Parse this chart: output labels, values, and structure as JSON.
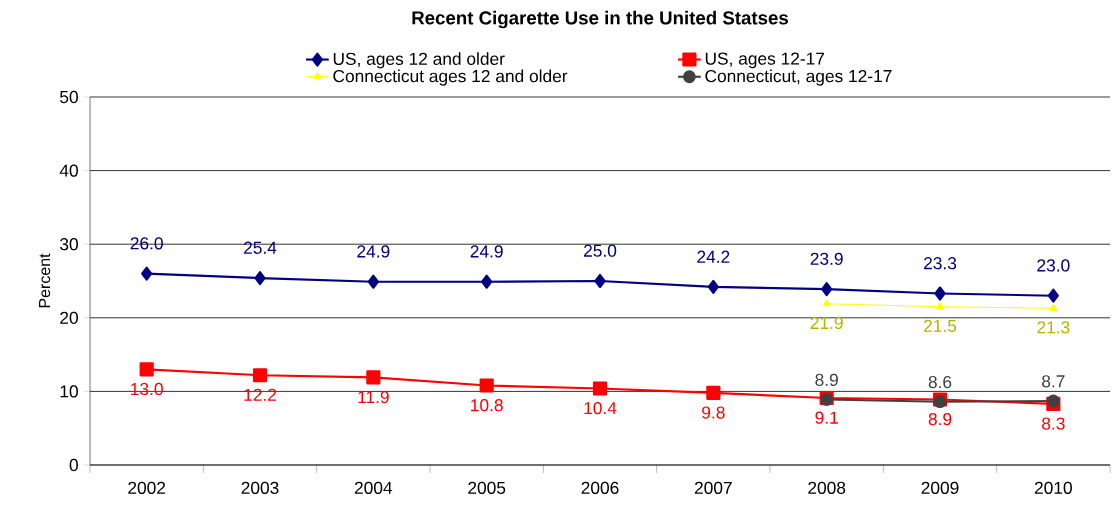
{
  "chart_data": {
    "type": "line",
    "title": "Recent Cigarette Use in the United Statses",
    "ylabel": "Percent",
    "categories": [
      "2002",
      "2003",
      "2004",
      "2005",
      "2006",
      "2007",
      "2008",
      "2009",
      "2010"
    ],
    "series": [
      {
        "name": "US, ages 12 and older",
        "color": "#000080",
        "marker": "diamond",
        "values": [
          26.0,
          25.4,
          24.9,
          24.9,
          25.0,
          24.2,
          23.9,
          23.3,
          23.0
        ],
        "value_labels": [
          "26.0",
          "25.4",
          "24.9",
          "24.9",
          "25.0",
          "24.2",
          "23.9",
          "23.3",
          "23.0"
        ]
      },
      {
        "name": "US, ages 12-17",
        "color": "#ff0000",
        "marker": "square",
        "values": [
          13.0,
          12.2,
          11.9,
          10.8,
          10.4,
          9.8,
          9.1,
          8.9,
          8.3
        ],
        "value_labels": [
          "13.0",
          "12.2",
          "11.9",
          "10.8",
          "10.4",
          "9.8",
          "9.1",
          "8.9",
          "8.3"
        ]
      },
      {
        "name": "Connecticut ages 12 and older",
        "color": "#ffff00",
        "marker": "triangle",
        "values": [
          null,
          null,
          null,
          null,
          null,
          null,
          21.9,
          21.5,
          21.3
        ],
        "value_labels": [
          null,
          null,
          null,
          null,
          null,
          null,
          "21.9",
          "21.5",
          "21.3"
        ]
      },
      {
        "name": "Connecticut, ages 12-17",
        "color": "#404040",
        "marker": "circle",
        "values": [
          null,
          null,
          null,
          null,
          null,
          null,
          8.9,
          8.6,
          8.7
        ],
        "value_labels": [
          null,
          null,
          null,
          null,
          null,
          null,
          "8.9",
          "8.6",
          "8.7"
        ]
      }
    ],
    "ylim": [
      0,
      50
    ],
    "yticks": [
      0,
      10,
      20,
      30,
      40,
      50
    ],
    "grid": "y",
    "legend": "top",
    "line_style": "solid"
  }
}
